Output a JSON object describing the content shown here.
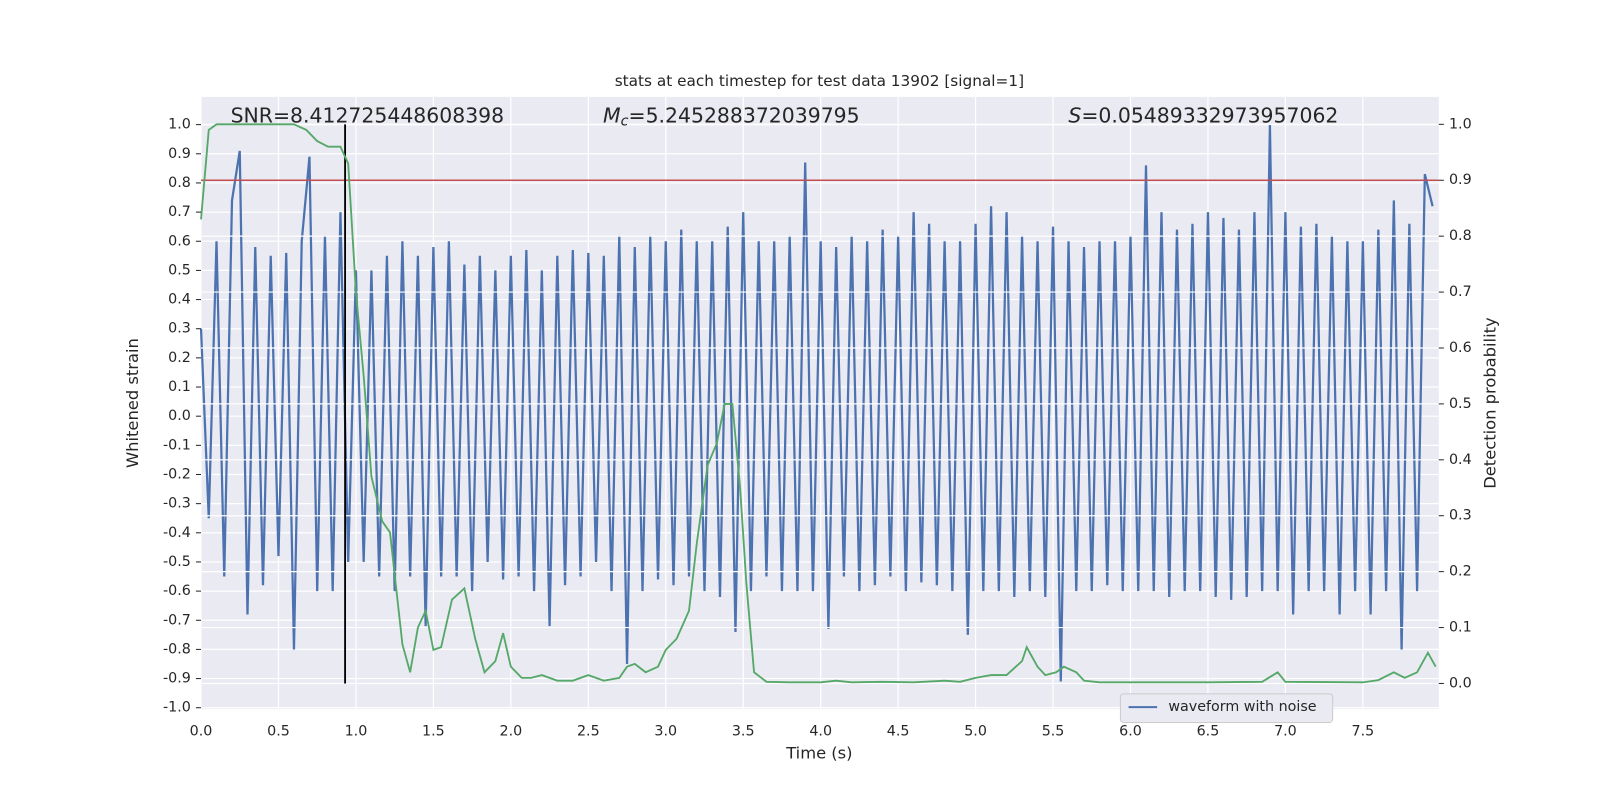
{
  "chart_data": {
    "type": "line",
    "title": "stats at each timestep for test data 13902 [signal=1]",
    "xlabel": "Time (s)",
    "ylabel": "Whitened strain",
    "y2label": "Detection probability",
    "annotations": [
      {
        "text": "SNR=8.412725448608398"
      },
      {
        "symbol": "M",
        "subscript": "c",
        "text": "=5.245288372039795"
      },
      {
        "symbol": "S",
        "text": "=0.05489332973957062"
      }
    ],
    "xlim": [
      0,
      7.99
    ],
    "ylim": [
      -1.005,
      1.095
    ],
    "y2lim": [
      -0.046,
      1.049
    ],
    "xticks": [
      {
        "value": 0,
        "label": "0.0"
      },
      0.5,
      {
        "value": 1,
        "label": "1.0"
      },
      1.5,
      {
        "value": 2,
        "label": "2.0"
      },
      2.5,
      {
        "value": 3,
        "label": "3.0"
      },
      3.5,
      {
        "value": 4,
        "label": "4.0"
      },
      4.5,
      {
        "value": 5,
        "label": "5.0"
      },
      5.5,
      {
        "value": 6,
        "label": "6.0"
      },
      6.5,
      {
        "value": 7,
        "label": "7.0"
      },
      7.5
    ],
    "yticks": [
      {
        "value": -1,
        "label": "-1.0"
      },
      -0.9,
      -0.8,
      -0.7,
      -0.6,
      -0.5,
      -0.4,
      -0.3,
      -0.2,
      -0.1,
      {
        "value": 0,
        "label": "0.0"
      },
      0.1,
      0.2,
      0.3,
      0.4,
      0.5,
      0.6,
      0.7,
      0.8,
      0.9,
      {
        "value": 1,
        "label": "1.0"
      }
    ],
    "y2ticks": [
      {
        "value": 0,
        "label": "0.0"
      },
      0.1,
      0.2,
      0.3,
      0.4,
      0.5,
      0.6,
      0.7,
      0.8,
      0.9,
      {
        "value": 1,
        "label": "1.0"
      }
    ],
    "grid": true,
    "legend": "lower right",
    "threshold": {
      "value": 0.9,
      "axis": "y2",
      "color": "#c44e52"
    },
    "vline": {
      "x": 0.93,
      "color": "#000000"
    },
    "series": [
      {
        "name": "waveform with noise",
        "color": "#4c72b0",
        "x": [
          0,
          0.05,
          0.1,
          0.15,
          0.2,
          0.25,
          0.3,
          0.35,
          0.4,
          0.45,
          0.5,
          0.55,
          0.6,
          0.65,
          0.7,
          0.75,
          0.8,
          0.85,
          0.9,
          0.95,
          1,
          1.05,
          1.1,
          1.15,
          1.2,
          1.25,
          1.3,
          1.35,
          1.4,
          1.45,
          1.5,
          1.55,
          1.6,
          1.65,
          1.7,
          1.75,
          1.8,
          1.85,
          1.9,
          1.95,
          2,
          2.05,
          2.1,
          2.15,
          2.2,
          2.25,
          2.3,
          2.35,
          2.4,
          2.45,
          2.5,
          2.55,
          2.6,
          2.65,
          2.7,
          2.75,
          2.8,
          2.85,
          2.9,
          2.95,
          3,
          3.05,
          3.1,
          3.15,
          3.2,
          3.25,
          3.3,
          3.35,
          3.4,
          3.45,
          3.5,
          3.55,
          3.6,
          3.65,
          3.7,
          3.75,
          3.8,
          3.85,
          3.9,
          3.95,
          4,
          4.05,
          4.1,
          4.15,
          4.2,
          4.25,
          4.3,
          4.35,
          4.4,
          4.45,
          4.5,
          4.55,
          4.6,
          4.65,
          4.7,
          4.75,
          4.8,
          4.85,
          4.9,
          4.95,
          5,
          5.05,
          5.1,
          5.15,
          5.2,
          5.25,
          5.3,
          5.35,
          5.4,
          5.45,
          5.5,
          5.55,
          5.6,
          5.65,
          5.7,
          5.75,
          5.8,
          5.85,
          5.9,
          5.95,
          6,
          6.05,
          6.1,
          6.15,
          6.2,
          6.25,
          6.3,
          6.35,
          6.4,
          6.45,
          6.5,
          6.55,
          6.6,
          6.65,
          6.7,
          6.75,
          6.8,
          6.85,
          6.9,
          6.95,
          7,
          7.05,
          7.1,
          7.15,
          7.2,
          7.25,
          7.3,
          7.35,
          7.4,
          7.45,
          7.5,
          7.55,
          7.6,
          7.65,
          7.7,
          7.75,
          7.8,
          7.85,
          7.9,
          7.95
        ],
        "values": [
          0.3,
          -0.35,
          0.6,
          -0.55,
          0.74,
          0.91,
          -0.68,
          0.58,
          -0.58,
          0.55,
          -0.48,
          0.56,
          -0.8,
          0.6,
          0.89,
          -0.6,
          0.62,
          -0.6,
          0.7,
          -0.5,
          0.5,
          -0.5,
          0.5,
          -0.55,
          0.55,
          -0.6,
          0.6,
          -0.55,
          0.55,
          -0.72,
          0.58,
          -0.55,
          0.6,
          -0.55,
          0.52,
          -0.6,
          0.55,
          -0.5,
          0.5,
          -0.56,
          0.55,
          -0.55,
          0.57,
          -0.6,
          0.5,
          -0.72,
          0.55,
          -0.58,
          0.57,
          -0.55,
          0.56,
          -0.5,
          0.55,
          -0.6,
          0.62,
          -0.85,
          0.58,
          -0.6,
          0.62,
          -0.56,
          0.6,
          -0.58,
          0.64,
          -0.55,
          0.6,
          -0.6,
          0.6,
          -0.62,
          0.65,
          -0.74,
          0.7,
          -0.6,
          0.6,
          -0.55,
          0.6,
          -0.6,
          0.62,
          -0.6,
          0.87,
          -0.6,
          0.6,
          -0.73,
          0.58,
          -0.55,
          0.62,
          -0.6,
          0.6,
          -0.58,
          0.64,
          -0.55,
          0.62,
          -0.6,
          0.7,
          -0.57,
          0.66,
          -0.58,
          0.6,
          -0.6,
          0.6,
          -0.75,
          0.66,
          -0.6,
          0.72,
          -0.6,
          0.7,
          -0.62,
          0.62,
          -0.6,
          0.6,
          -0.62,
          0.65,
          -0.91,
          0.6,
          -0.6,
          0.58,
          -0.6,
          0.6,
          -0.58,
          0.6,
          -0.6,
          0.62,
          -0.6,
          0.86,
          -0.6,
          0.7,
          -0.62,
          0.64,
          -0.6,
          0.66,
          -0.6,
          0.7,
          -0.62,
          0.68,
          -0.63,
          0.64,
          -0.62,
          0.7,
          -0.6,
          1.0,
          -0.6,
          0.7,
          -0.68,
          0.65,
          -0.6,
          0.66,
          -0.6,
          0.62,
          -0.68,
          0.6,
          -0.6,
          0.6,
          -0.68,
          0.64,
          -0.6,
          0.74,
          -0.8,
          0.66,
          -0.6,
          0.83,
          0.72
        ]
      },
      {
        "color": "#55a868",
        "axis": "y2",
        "x": [
          0,
          0.05,
          0.1,
          0.3,
          0.6,
          0.68,
          0.75,
          0.82,
          0.9,
          0.95,
          1,
          1.05,
          1.1,
          1.17,
          1.22,
          1.3,
          1.35,
          1.4,
          1.45,
          1.5,
          1.55,
          1.62,
          1.7,
          1.77,
          1.83,
          1.9,
          1.95,
          2,
          2.07,
          2.13,
          2.2,
          2.3,
          2.4,
          2.5,
          2.6,
          2.7,
          2.75,
          2.8,
          2.87,
          2.95,
          3,
          3.07,
          3.15,
          3.2,
          3.27,
          3.33,
          3.38,
          3.43,
          3.48,
          3.52,
          3.57,
          3.65,
          3.8,
          4,
          4.1,
          4.2,
          4.4,
          4.6,
          4.8,
          4.9,
          5,
          5.1,
          5.2,
          5.3,
          5.33,
          5.4,
          5.45,
          5.52,
          5.57,
          5.65,
          5.7,
          5.8,
          6,
          6.5,
          6.85,
          6.95,
          7,
          7.5,
          7.6,
          7.7,
          7.77,
          7.85,
          7.92,
          7.97
        ],
        "values": [
          0.83,
          0.99,
          1.0,
          1.0,
          1.0,
          0.99,
          0.97,
          0.96,
          0.96,
          0.93,
          0.7,
          0.55,
          0.37,
          0.29,
          0.27,
          0.07,
          0.02,
          0.1,
          0.13,
          0.06,
          0.065,
          0.15,
          0.17,
          0.08,
          0.02,
          0.04,
          0.09,
          0.03,
          0.01,
          0.01,
          0.015,
          0.005,
          0.005,
          0.015,
          0.005,
          0.01,
          0.03,
          0.035,
          0.02,
          0.03,
          0.06,
          0.08,
          0.13,
          0.25,
          0.39,
          0.43,
          0.5,
          0.5,
          0.35,
          0.18,
          0.02,
          0.003,
          0.002,
          0.002,
          0.005,
          0.002,
          0.003,
          0.002,
          0.005,
          0.003,
          0.01,
          0.015,
          0.015,
          0.04,
          0.065,
          0.03,
          0.015,
          0.02,
          0.03,
          0.02,
          0.005,
          0.002,
          0.002,
          0.002,
          0.003,
          0.02,
          0.003,
          0.002,
          0.006,
          0.02,
          0.01,
          0.02,
          0.055,
          0.03
        ]
      }
    ]
  }
}
